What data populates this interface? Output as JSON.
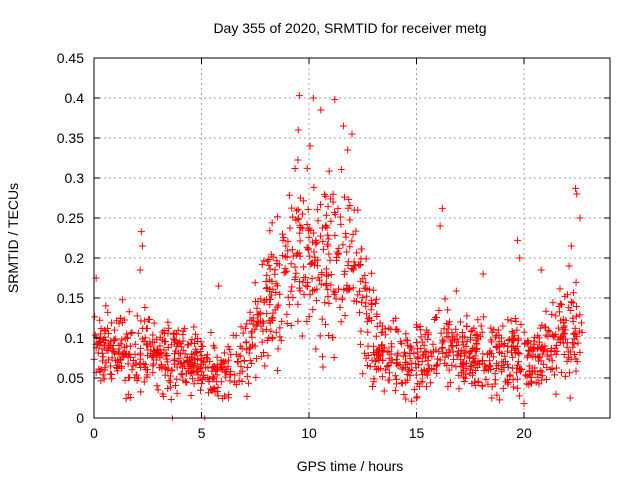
{
  "chart_data": {
    "type": "scatter",
    "title": "Day 355 of 2020, SRMTID for receiver metg",
    "xlabel": "GPS time / hours",
    "ylabel": "SRMTID / TECUs",
    "xlim": [
      0,
      24
    ],
    "ylim": [
      0,
      0.45
    ],
    "xticks": [
      0,
      5,
      10,
      15,
      20
    ],
    "xtick_labels": [
      "0",
      "5",
      "10",
      "15",
      "20"
    ],
    "yticks": [
      0,
      0.05,
      0.1,
      0.15,
      0.2,
      0.25,
      0.3,
      0.35,
      0.4,
      0.45
    ],
    "ytick_labels": [
      "0",
      "0.05",
      "0.1",
      "0.15",
      "0.2",
      "0.25",
      "0.3",
      "0.35",
      "0.4",
      "0.45"
    ],
    "grid": true,
    "marker": "+",
    "color": "#ff0000",
    "series": [
      {
        "name": "SRMTID",
        "profile": [
          [
            0.0,
            0.1,
            0.035
          ],
          [
            0.5,
            0.085,
            0.03
          ],
          [
            1.0,
            0.085,
            0.03
          ],
          [
            1.5,
            0.08,
            0.03
          ],
          [
            2.0,
            0.085,
            0.035
          ],
          [
            2.5,
            0.08,
            0.03
          ],
          [
            3.0,
            0.075,
            0.03
          ],
          [
            3.5,
            0.075,
            0.025
          ],
          [
            4.0,
            0.075,
            0.025
          ],
          [
            4.5,
            0.075,
            0.025
          ],
          [
            5.0,
            0.07,
            0.025
          ],
          [
            5.5,
            0.06,
            0.025
          ],
          [
            6.0,
            0.06,
            0.025
          ],
          [
            6.5,
            0.07,
            0.03
          ],
          [
            7.0,
            0.075,
            0.03
          ],
          [
            7.5,
            0.1,
            0.04
          ],
          [
            8.0,
            0.14,
            0.05
          ],
          [
            8.5,
            0.17,
            0.06
          ],
          [
            9.0,
            0.19,
            0.06
          ],
          [
            9.5,
            0.21,
            0.07
          ],
          [
            10.0,
            0.2,
            0.07
          ],
          [
            10.5,
            0.18,
            0.07
          ],
          [
            11.0,
            0.19,
            0.07
          ],
          [
            11.5,
            0.22,
            0.07
          ],
          [
            12.0,
            0.21,
            0.07
          ],
          [
            12.5,
            0.15,
            0.05
          ],
          [
            13.0,
            0.11,
            0.04
          ],
          [
            13.5,
            0.08,
            0.03
          ],
          [
            14.0,
            0.075,
            0.03
          ],
          [
            14.5,
            0.07,
            0.03
          ],
          [
            15.0,
            0.07,
            0.03
          ],
          [
            15.5,
            0.075,
            0.03
          ],
          [
            16.0,
            0.09,
            0.035
          ],
          [
            16.5,
            0.09,
            0.035
          ],
          [
            17.0,
            0.085,
            0.03
          ],
          [
            17.5,
            0.08,
            0.03
          ],
          [
            18.0,
            0.075,
            0.03
          ],
          [
            18.5,
            0.075,
            0.03
          ],
          [
            19.0,
            0.08,
            0.035
          ],
          [
            19.5,
            0.085,
            0.035
          ],
          [
            20.0,
            0.075,
            0.03
          ],
          [
            20.5,
            0.07,
            0.03
          ],
          [
            21.0,
            0.085,
            0.035
          ],
          [
            21.5,
            0.1,
            0.04
          ],
          [
            22.0,
            0.11,
            0.04
          ],
          [
            22.5,
            0.1,
            0.04
          ],
          [
            22.7,
            0.1,
            0.04
          ]
        ],
        "x_range": [
          0,
          22.7
        ],
        "n_points": 1400
      }
    ],
    "highlight_points": [
      {
        "x": 9.55,
        "y": 0.403
      },
      {
        "x": 10.2,
        "y": 0.4
      },
      {
        "x": 11.2,
        "y": 0.398
      },
      {
        "x": 10.55,
        "y": 0.385
      },
      {
        "x": 11.6,
        "y": 0.365
      },
      {
        "x": 9.5,
        "y": 0.36
      },
      {
        "x": 12.0,
        "y": 0.355
      },
      {
        "x": 11.8,
        "y": 0.335
      },
      {
        "x": 10.05,
        "y": 0.34
      },
      {
        "x": 16.2,
        "y": 0.262
      },
      {
        "x": 22.4,
        "y": 0.287
      },
      {
        "x": 22.45,
        "y": 0.28
      },
      {
        "x": 22.6,
        "y": 0.25
      },
      {
        "x": 2.2,
        "y": 0.233
      },
      {
        "x": 2.25,
        "y": 0.215
      },
      {
        "x": 19.7,
        "y": 0.222
      },
      {
        "x": 19.8,
        "y": 0.2
      },
      {
        "x": 16.1,
        "y": 0.24
      },
      {
        "x": 0.1,
        "y": 0.175
      },
      {
        "x": 2.15,
        "y": 0.185
      },
      {
        "x": 5.8,
        "y": 0.165
      },
      {
        "x": 18.1,
        "y": 0.18
      },
      {
        "x": 20.8,
        "y": 0.185
      },
      {
        "x": 22.2,
        "y": 0.215
      },
      {
        "x": 22.1,
        "y": 0.19
      },
      {
        "x": 20.0,
        "y": 0.018
      },
      {
        "x": 22.15,
        "y": 0.025
      },
      {
        "x": 18.5,
        "y": 0.025
      },
      {
        "x": 3.2,
        "y": 0.03
      },
      {
        "x": 15.0,
        "y": 0.025
      }
    ],
    "zero_points": [
      {
        "x": 3.65,
        "y": 0.0
      },
      {
        "x": 5.15,
        "y": 0.0
      }
    ]
  }
}
